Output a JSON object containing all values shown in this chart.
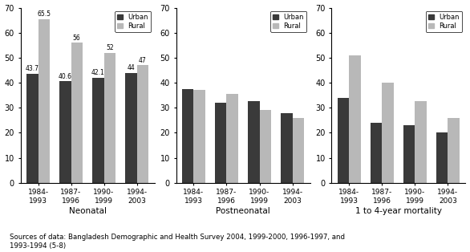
{
  "categories": [
    [
      "1984-",
      "1993"
    ],
    [
      "1987-",
      "1996"
    ],
    [
      "1990-",
      "1999"
    ],
    [
      "1994-",
      "2003"
    ]
  ],
  "neonatal": {
    "urban": [
      43.7,
      40.6,
      42.1,
      44
    ],
    "rural": [
      65.5,
      56,
      52,
      47
    ],
    "title": "Neonatal",
    "show_labels": true
  },
  "postneonatal": {
    "urban": [
      37.5,
      32,
      32.5,
      28
    ],
    "rural": [
      37,
      35.5,
      29,
      26
    ],
    "title": "Postneonatal",
    "show_labels": false
  },
  "child": {
    "urban": [
      34,
      24,
      23,
      20
    ],
    "rural": [
      51,
      40,
      32.5,
      26
    ],
    "title": "1 to 4-year mortality",
    "show_labels": false
  },
  "ylim": [
    0,
    70
  ],
  "yticks": [
    0,
    10,
    20,
    30,
    40,
    50,
    60,
    70
  ],
  "urban_color": "#3a3a3a",
  "rural_color": "#b8b8b8",
  "background_color": "#ffffff",
  "caption": "Sources of data: Bangladesh Demographic and Health Survey 2004, 1999-2000, 1996-1997, and\n1993-1994 (5-8)"
}
